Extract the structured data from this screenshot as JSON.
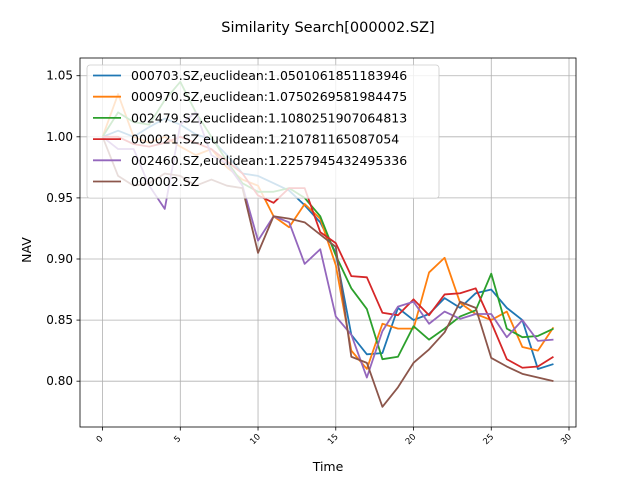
{
  "chart_data": {
    "type": "line",
    "title": "Similarity Search[000002.SZ]",
    "xlabel": "Time",
    "ylabel": "NAV",
    "xlim": [
      -1.45,
      30.45
    ],
    "ylim": [
      0.7625,
      1.0645
    ],
    "xticks": [
      0,
      5,
      10,
      15,
      20,
      25,
      30
    ],
    "xtick_labels": [
      "0",
      "5",
      "10",
      "15",
      "20",
      "25",
      "30"
    ],
    "yticks": [
      0.8,
      0.85,
      0.9,
      0.95,
      1.0,
      1.05
    ],
    "ytick_labels": [
      "0.80",
      "0.85",
      "0.90",
      "0.95",
      "1.00",
      "1.05"
    ],
    "grid": true,
    "legend_position": "top-left",
    "x": [
      0,
      1,
      2,
      3,
      4,
      5,
      6,
      7,
      8,
      9,
      10,
      11,
      12,
      13,
      14,
      15,
      16,
      17,
      18,
      19,
      20,
      21,
      22,
      23,
      24,
      25,
      26,
      27,
      28,
      29
    ],
    "series": [
      {
        "name": "000703.SZ,euclidean:1.0501061851183946",
        "color": "#1f77b4",
        "values": [
          1.0,
          1.005,
          1.0,
          1.008,
          1.015,
          1.01,
          1.002,
          0.998,
          0.985,
          0.97,
          0.968,
          0.962,
          0.956,
          0.944,
          0.93,
          0.905,
          0.838,
          0.822,
          0.823,
          0.86,
          0.85,
          0.855,
          0.868,
          0.86,
          0.872,
          0.875,
          0.86,
          0.85,
          0.81,
          0.814
        ]
      },
      {
        "name": "000970.SZ,euclidean:1.0750269581984475",
        "color": "#ff7f0e",
        "values": [
          1.0,
          1.035,
          1.0,
          0.995,
          1.0,
          0.992,
          0.985,
          0.99,
          0.975,
          0.965,
          0.96,
          0.935,
          0.926,
          0.945,
          0.933,
          0.895,
          0.825,
          0.81,
          0.847,
          0.843,
          0.843,
          0.889,
          0.901,
          0.864,
          0.855,
          0.85,
          0.857,
          0.828,
          0.825,
          0.844
        ]
      },
      {
        "name": "002479.SZ,euclidean:1.1080251907064813",
        "color": "#2ca02c",
        "values": [
          1.0,
          1.02,
          1.012,
          1.01,
          1.03,
          1.045,
          1.02,
          1.0,
          0.98,
          0.962,
          0.955,
          0.955,
          0.958,
          0.95,
          0.935,
          0.903,
          0.876,
          0.859,
          0.818,
          0.82,
          0.845,
          0.834,
          0.843,
          0.853,
          0.858,
          0.888,
          0.843,
          0.836,
          0.837,
          0.843
        ]
      },
      {
        "name": "000021.SZ,euclidean:1.210781165087054",
        "color": "#d62728",
        "values": [
          1.0,
          1.0,
          0.994,
          0.992,
          0.995,
          1.0,
          0.995,
          0.99,
          0.98,
          0.97,
          0.952,
          0.946,
          0.958,
          0.958,
          0.922,
          0.913,
          0.886,
          0.885,
          0.856,
          0.854,
          0.867,
          0.854,
          0.871,
          0.872,
          0.876,
          0.848,
          0.818,
          0.811,
          0.812,
          0.82
        ]
      },
      {
        "name": "002460.SZ,euclidean:1.2257945432495336",
        "color": "#9467bd",
        "values": [
          1.0,
          0.99,
          0.99,
          0.96,
          0.941,
          1.01,
          1.02,
          0.985,
          0.978,
          0.96,
          0.915,
          0.935,
          0.93,
          0.896,
          0.908,
          0.853,
          0.838,
          0.803,
          0.841,
          0.861,
          0.865,
          0.847,
          0.857,
          0.851,
          0.855,
          0.855,
          0.836,
          0.85,
          0.833,
          0.834
        ]
      },
      {
        "name": "000002.SZ",
        "color": "#8c564b",
        "values": [
          1.0,
          0.968,
          0.96,
          0.962,
          0.97,
          0.968,
          0.96,
          0.965,
          0.96,
          0.958,
          0.905,
          0.935,
          0.933,
          0.93,
          0.92,
          0.91,
          0.82,
          0.815,
          0.779,
          0.795,
          0.815,
          0.826,
          0.84,
          0.865,
          0.86,
          0.819,
          0.812,
          0.806,
          0.803,
          0.8
        ]
      }
    ]
  }
}
